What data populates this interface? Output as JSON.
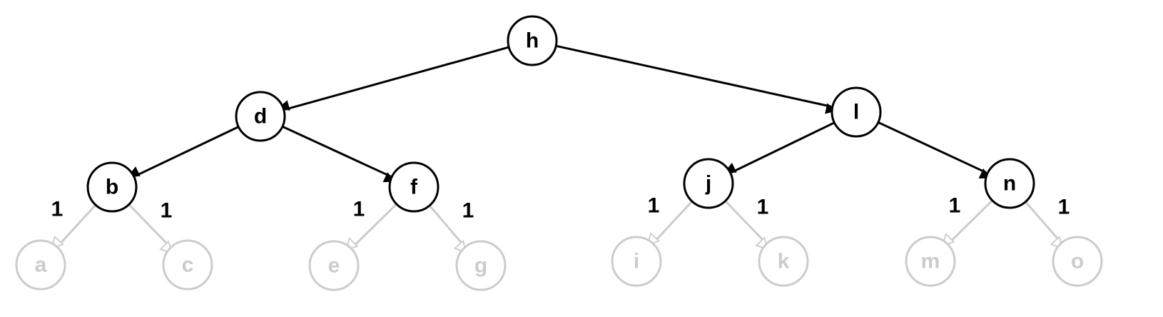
{
  "colors": {
    "active": "#000000",
    "faded": "#cccccc"
  },
  "nodes": [
    {
      "id": "h",
      "label": "h",
      "state": "active"
    },
    {
      "id": "d",
      "label": "d",
      "state": "active"
    },
    {
      "id": "l",
      "label": "l",
      "state": "active"
    },
    {
      "id": "b",
      "label": "b",
      "state": "active"
    },
    {
      "id": "f",
      "label": "f",
      "state": "active"
    },
    {
      "id": "j",
      "label": "j",
      "state": "active"
    },
    {
      "id": "n",
      "label": "n",
      "state": "active"
    },
    {
      "id": "a",
      "label": "a",
      "state": "faded"
    },
    {
      "id": "c",
      "label": "c",
      "state": "faded"
    },
    {
      "id": "e",
      "label": "e",
      "state": "faded"
    },
    {
      "id": "g",
      "label": "g",
      "state": "faded"
    },
    {
      "id": "i",
      "label": "i",
      "state": "faded"
    },
    {
      "id": "k",
      "label": "k",
      "state": "faded"
    },
    {
      "id": "m",
      "label": "m",
      "state": "faded"
    },
    {
      "id": "o",
      "label": "o",
      "state": "faded"
    }
  ],
  "edges": [
    {
      "from": "h",
      "to": "d",
      "state": "active",
      "label": ""
    },
    {
      "from": "h",
      "to": "l",
      "state": "active",
      "label": ""
    },
    {
      "from": "d",
      "to": "b",
      "state": "active",
      "label": ""
    },
    {
      "from": "d",
      "to": "f",
      "state": "active",
      "label": ""
    },
    {
      "from": "l",
      "to": "j",
      "state": "active",
      "label": ""
    },
    {
      "from": "l",
      "to": "n",
      "state": "active",
      "label": ""
    },
    {
      "from": "b",
      "to": "a",
      "state": "faded",
      "label": "1"
    },
    {
      "from": "b",
      "to": "c",
      "state": "faded",
      "label": "1"
    },
    {
      "from": "f",
      "to": "e",
      "state": "faded",
      "label": "1"
    },
    {
      "from": "f",
      "to": "g",
      "state": "faded",
      "label": "1"
    },
    {
      "from": "j",
      "to": "i",
      "state": "faded",
      "label": "1"
    },
    {
      "from": "j",
      "to": "k",
      "state": "faded",
      "label": "1"
    },
    {
      "from": "n",
      "to": "m",
      "state": "faded",
      "label": "1"
    },
    {
      "from": "n",
      "to": "o",
      "state": "faded",
      "label": "1"
    }
  ]
}
